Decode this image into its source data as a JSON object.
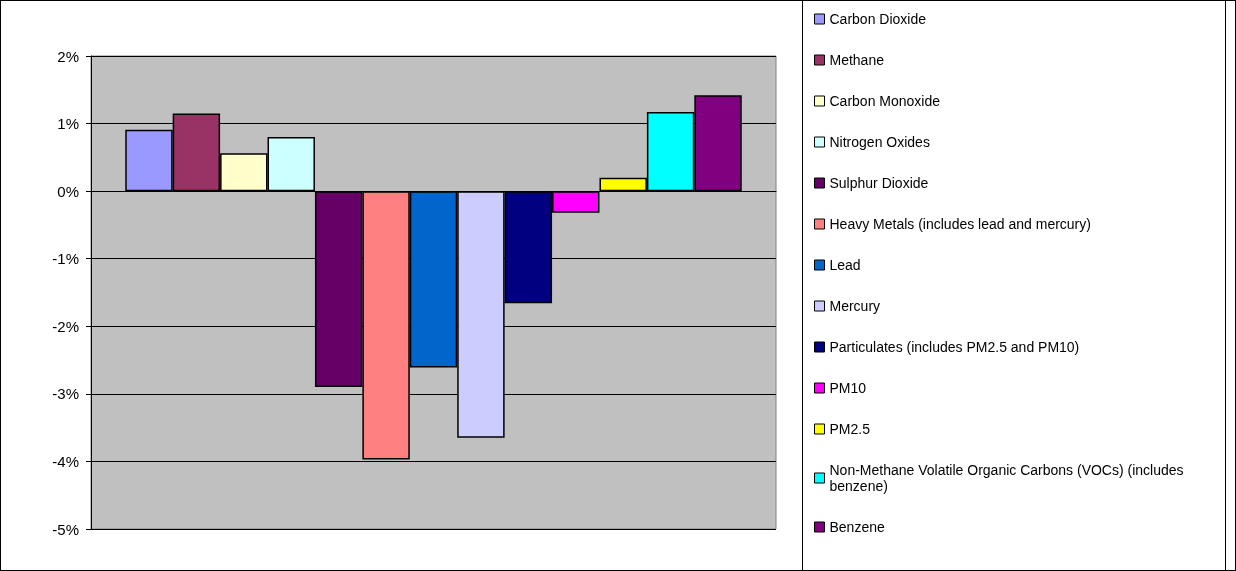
{
  "chart_data": {
    "type": "bar",
    "categories": [
      null
    ],
    "ylim": [
      -5,
      2
    ],
    "yticks": [
      {
        "value": -5,
        "label": "-5%"
      },
      {
        "value": -4,
        "label": "-4%"
      },
      {
        "value": -3,
        "label": "-3%"
      },
      {
        "value": -2,
        "label": "-2%"
      },
      {
        "value": -1,
        "label": "-1%"
      },
      {
        "value": 0,
        "label": "0%"
      },
      {
        "value": 1,
        "label": "1%"
      },
      {
        "value": 2,
        "label": "2%"
      }
    ],
    "grid": "y",
    "legend": "right",
    "series": [
      {
        "name": "Carbon Dioxide",
        "color": "#9999ff",
        "values": [
          0.91
        ]
      },
      {
        "name": "Methane",
        "color": "#993366",
        "values": [
          1.15
        ]
      },
      {
        "name": "Carbon Monoxide",
        "color": "#ffffcc",
        "values": [
          0.56
        ]
      },
      {
        "name": "Nitrogen Oxides",
        "color": "#ccffff",
        "values": [
          0.8
        ]
      },
      {
        "name": "Sulphur Dioxide",
        "color": "#660066",
        "values": [
          -2.9
        ]
      },
      {
        "name": "Heavy Metals (includes lead and mercury)",
        "color": "#ff8080",
        "values": [
          -3.97
        ]
      },
      {
        "name": "Lead",
        "color": "#0066cc",
        "values": [
          -2.61
        ]
      },
      {
        "name": "Mercury",
        "color": "#ccccff",
        "values": [
          -3.65
        ]
      },
      {
        "name": "Particulates (includes PM2.5 and PM10)",
        "color": "#000080",
        "values": [
          -1.66
        ]
      },
      {
        "name": "PM10",
        "color": "#ff00ff",
        "values": [
          -0.32
        ]
      },
      {
        "name": "PM2.5",
        "color": "#ffff00",
        "values": [
          0.2
        ]
      },
      {
        "name": "Non-Methane Volatile Organic Carbons (VOCs) (includes benzene)",
        "color": "#00ffff",
        "values": [
          1.17
        ]
      },
      {
        "name": "Benzene",
        "color": "#800080",
        "values": [
          1.42
        ]
      }
    ]
  }
}
